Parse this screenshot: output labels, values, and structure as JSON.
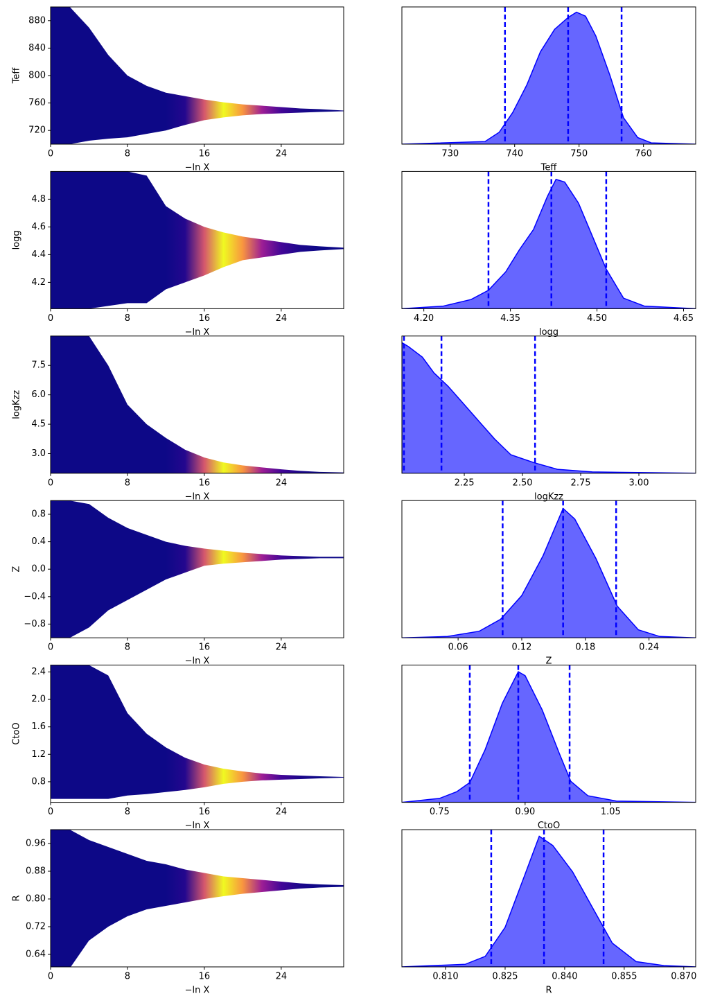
{
  "chart_data": [
    {
      "type": "band",
      "xlabel": "−ln X",
      "ylabel": "Teff",
      "colormap": "plasma",
      "x": [
        0,
        2,
        4,
        6,
        8,
        10,
        12,
        14,
        16,
        18,
        20,
        22,
        24,
        26,
        28,
        30.5
      ],
      "upper": [
        900,
        900,
        870,
        830,
        800,
        785,
        775,
        770,
        765,
        761,
        758,
        756,
        754,
        752,
        751,
        749
      ],
      "lower": [
        700,
        700,
        705,
        708,
        710,
        715,
        720,
        728,
        735,
        739,
        742,
        744,
        745,
        746,
        747,
        748
      ],
      "weights": [
        0,
        0,
        0,
        0,
        0,
        0,
        0,
        0.05,
        0.55,
        1,
        0.75,
        0.35,
        0.12,
        0.03,
        0,
        0
      ],
      "xlim": [
        0,
        30.5
      ],
      "xticks": [
        0,
        8,
        16,
        24
      ],
      "ylim": [
        700,
        900
      ],
      "yticks": [
        720,
        760,
        800,
        840,
        880
      ]
    },
    {
      "type": "area",
      "xlabel": "Teff",
      "color": "#0000ff",
      "quantile_color": "#0000ff",
      "x": [
        722.5,
        735.4,
        737.6,
        739.7,
        741.9,
        744.0,
        746.2,
        748.3,
        749.6,
        751.0,
        752.6,
        754.8,
        756.9,
        759.1,
        761.2,
        768.1
      ],
      "y": [
        0,
        0.02,
        0.09,
        0.24,
        0.45,
        0.7,
        0.87,
        0.96,
        1.0,
        0.97,
        0.82,
        0.52,
        0.2,
        0.05,
        0.01,
        0
      ],
      "quantiles": [
        738.5,
        748.3,
        756.6
      ],
      "xlim": [
        722.5,
        768.1
      ],
      "xticks": [
        730,
        740,
        750,
        760
      ],
      "ylim": [
        0,
        1.04
      ]
    },
    {
      "type": "band",
      "xlabel": "−ln X",
      "ylabel": "logg",
      "colormap": "plasma",
      "x": [
        0,
        2,
        4,
        6,
        8,
        10,
        12,
        14,
        16,
        18,
        20,
        22,
        24,
        26,
        28,
        30.5
      ],
      "upper": [
        5.0,
        5.0,
        5.0,
        5.0,
        5.0,
        4.97,
        4.75,
        4.66,
        4.6,
        4.56,
        4.53,
        4.51,
        4.49,
        4.47,
        4.46,
        4.45
      ],
      "lower": [
        4.01,
        4.01,
        4.01,
        4.03,
        4.05,
        4.05,
        4.15,
        4.2,
        4.25,
        4.31,
        4.36,
        4.38,
        4.4,
        4.42,
        4.43,
        4.44
      ],
      "weights": [
        0,
        0,
        0,
        0,
        0,
        0,
        0,
        0.05,
        0.55,
        1,
        0.75,
        0.35,
        0.12,
        0.03,
        0,
        0
      ],
      "xlim": [
        0,
        30.5
      ],
      "xticks": [
        0,
        8,
        16,
        24
      ],
      "ylim": [
        4.01,
        5.0
      ],
      "yticks": [
        4.2,
        4.4,
        4.6,
        4.8
      ]
    },
    {
      "type": "area",
      "xlabel": "logg",
      "color": "#0000ff",
      "quantile_color": "#0000ff",
      "x": [
        4.162,
        4.234,
        4.282,
        4.312,
        4.342,
        4.366,
        4.39,
        4.414,
        4.429,
        4.444,
        4.468,
        4.492,
        4.516,
        4.546,
        4.582,
        4.671
      ],
      "y": [
        0,
        0.02,
        0.07,
        0.14,
        0.28,
        0.45,
        0.6,
        0.85,
        0.98,
        0.96,
        0.8,
        0.55,
        0.3,
        0.08,
        0.02,
        0
      ],
      "quantiles": [
        4.312,
        4.421,
        4.516
      ],
      "xlim": [
        4.162,
        4.671
      ],
      "xticks": [
        {
          "value": 4.2,
          "label": "4.20"
        },
        4.35,
        {
          "value": 4.5,
          "label": "4.50"
        },
        4.65
      ],
      "ylim": [
        0,
        1.04
      ]
    },
    {
      "type": "band",
      "xlabel": "−ln X",
      "ylabel": "logKzz",
      "colormap": "plasma",
      "x": [
        0,
        2,
        4,
        6,
        8,
        10,
        12,
        14,
        16,
        18,
        20,
        22,
        24,
        26,
        28,
        30.5
      ],
      "upper": [
        9,
        9,
        9,
        7.5,
        5.5,
        4.5,
        3.8,
        3.2,
        2.8,
        2.55,
        2.4,
        2.3,
        2.2,
        2.12,
        2.07,
        2.04
      ],
      "lower": [
        2.0,
        2.0,
        2.0,
        2.0,
        2.0,
        2.0,
        2.0,
        2.0,
        2.0,
        2.0,
        2.0,
        2.0,
        2.0,
        2.0,
        2.0,
        2.0
      ],
      "weights": [
        0,
        0,
        0,
        0,
        0,
        0,
        0,
        0.05,
        0.55,
        1,
        0.75,
        0.35,
        0.12,
        0.03,
        0,
        0
      ],
      "xlim": [
        0,
        30.5
      ],
      "xticks": [
        0,
        8,
        16,
        24
      ],
      "ylim": [
        2.0,
        9.0
      ],
      "yticks": [
        {
          "value": 3,
          "label": "3.0"
        },
        4.5,
        {
          "value": 6,
          "label": "6.0"
        },
        7.5
      ]
    },
    {
      "type": "area",
      "xlabel": "logKzz",
      "color": "#0000ff",
      "quantile_color": "#0000ff",
      "x": [
        1.982,
        2.01,
        2.07,
        2.12,
        2.18,
        2.25,
        2.32,
        2.38,
        2.45,
        2.55,
        2.65,
        2.8,
        3.244
      ],
      "y": [
        0.99,
        0.96,
        0.88,
        0.76,
        0.66,
        0.52,
        0.38,
        0.26,
        0.14,
        0.08,
        0.03,
        0.01,
        0
      ],
      "quantiles": [
        1.991,
        2.152,
        2.554
      ],
      "xlim": [
        1.982,
        3.244
      ],
      "xticks": [
        2.25,
        {
          "value": 2.5,
          "label": "2.50"
        },
        2.75,
        {
          "value": 3,
          "label": "3.00"
        }
      ],
      "ylim": [
        0,
        1.04
      ]
    },
    {
      "type": "band",
      "xlabel": "−ln X",
      "ylabel": "Z",
      "colormap": "plasma",
      "x": [
        0,
        2,
        4,
        6,
        8,
        10,
        12,
        14,
        16,
        18,
        20,
        22,
        24,
        26,
        28,
        30.5
      ],
      "upper": [
        1,
        1,
        0.95,
        0.75,
        0.6,
        0.5,
        0.4,
        0.34,
        0.3,
        0.27,
        0.24,
        0.22,
        0.2,
        0.19,
        0.18,
        0.18
      ],
      "lower": [
        -1,
        -1,
        -0.85,
        -0.6,
        -0.45,
        -0.3,
        -0.15,
        -0.05,
        0.05,
        0.08,
        0.1,
        0.12,
        0.14,
        0.15,
        0.16,
        0.16
      ],
      "weights": [
        0,
        0,
        0,
        0,
        0,
        0,
        0,
        0.05,
        0.55,
        1,
        0.75,
        0.35,
        0.12,
        0.03,
        0,
        0
      ],
      "xlim": [
        0,
        30.5
      ],
      "xticks": [
        0,
        8,
        16,
        24
      ],
      "ylim": [
        -1,
        1
      ],
      "yticks": [
        {
          "value": -0.8,
          "label": "−0.8"
        },
        {
          "value": -0.4,
          "label": "−0.4"
        },
        {
          "value": 0,
          "label": "0.0"
        },
        0.4,
        0.8
      ]
    },
    {
      "type": "area",
      "xlabel": "Z",
      "color": "#0000ff",
      "quantile_color": "#0000ff",
      "x": [
        0.007,
        0.05,
        0.08,
        0.1,
        0.12,
        0.14,
        0.159,
        0.17,
        0.19,
        0.21,
        0.23,
        0.25,
        0.284
      ],
      "y": [
        0,
        0.01,
        0.05,
        0.14,
        0.32,
        0.62,
        0.98,
        0.9,
        0.6,
        0.24,
        0.06,
        0.01,
        0
      ],
      "quantiles": [
        0.102,
        0.159,
        0.209
      ],
      "xlim": [
        0.007,
        0.284
      ],
      "xticks": [
        0.06,
        0.12,
        0.18,
        0.24
      ],
      "ylim": [
        0,
        1.04
      ]
    },
    {
      "type": "band",
      "xlabel": "−ln X",
      "ylabel": "CtoO",
      "colormap": "plasma",
      "x": [
        0,
        2,
        4,
        6,
        8,
        10,
        12,
        14,
        16,
        18,
        20,
        22,
        24,
        26,
        28,
        30.5
      ],
      "upper": [
        2.5,
        2.5,
        2.5,
        2.35,
        1.8,
        1.5,
        1.3,
        1.15,
        1.05,
        0.99,
        0.95,
        0.92,
        0.9,
        0.89,
        0.88,
        0.87
      ],
      "lower": [
        0.55,
        0.55,
        0.55,
        0.55,
        0.6,
        0.62,
        0.65,
        0.68,
        0.72,
        0.77,
        0.8,
        0.82,
        0.83,
        0.84,
        0.85,
        0.86
      ],
      "weights": [
        0,
        0,
        0,
        0,
        0,
        0,
        0,
        0.05,
        0.55,
        1,
        0.75,
        0.35,
        0.12,
        0.03,
        0,
        0
      ],
      "xlim": [
        0,
        30.5
      ],
      "xticks": [
        0,
        8,
        16,
        24
      ],
      "ylim": [
        0.5,
        2.5
      ],
      "yticks": [
        0.8,
        1.2,
        1.6,
        {
          "value": 2,
          "label": "2.0"
        },
        2.4
      ]
    },
    {
      "type": "area",
      "xlabel": "CtoO",
      "color": "#0000ff",
      "quantile_color": "#0000ff",
      "x": [
        0.684,
        0.75,
        0.78,
        0.803,
        0.83,
        0.86,
        0.888,
        0.9,
        0.93,
        0.96,
        0.98,
        1.01,
        1.06,
        1.199
      ],
      "y": [
        0,
        0.03,
        0.08,
        0.15,
        0.4,
        0.75,
        0.99,
        0.96,
        0.7,
        0.37,
        0.16,
        0.05,
        0.01,
        0
      ],
      "quantiles": [
        0.803,
        0.888,
        0.978
      ],
      "xlim": [
        0.684,
        1.199
      ],
      "xticks": [
        0.75,
        {
          "value": 0.9,
          "label": "0.90"
        },
        1.05
      ],
      "ylim": [
        0,
        1.04
      ]
    },
    {
      "type": "band",
      "xlabel": "−ln X",
      "ylabel": "R",
      "colormap": "plasma",
      "x": [
        0,
        2,
        4,
        6,
        8,
        10,
        12,
        14,
        16,
        18,
        20,
        22,
        24,
        26,
        28,
        30.5
      ],
      "upper": [
        1.0,
        1.0,
        0.97,
        0.95,
        0.93,
        0.91,
        0.9,
        0.885,
        0.875,
        0.865,
        0.86,
        0.855,
        0.85,
        0.845,
        0.842,
        0.84
      ],
      "lower": [
        0.6,
        0.6,
        0.68,
        0.72,
        0.75,
        0.77,
        0.78,
        0.79,
        0.8,
        0.808,
        0.815,
        0.82,
        0.825,
        0.83,
        0.833,
        0.835
      ],
      "weights": [
        0,
        0,
        0,
        0,
        0,
        0,
        0,
        0.05,
        0.55,
        1,
        0.75,
        0.35,
        0.12,
        0.03,
        0,
        0
      ],
      "xlim": [
        0,
        30.5
      ],
      "xticks": [
        0,
        8,
        16,
        24
      ],
      "ylim": [
        0.604,
        1.0
      ],
      "yticks": [
        0.64,
        0.72,
        {
          "value": 0.8,
          "label": "0.80"
        },
        0.88,
        0.96
      ]
    },
    {
      "type": "area",
      "xlabel": "R",
      "color": "#0000ff",
      "quantile_color": "#0000ff",
      "x": [
        0.799,
        0.815,
        0.82,
        0.825,
        0.83,
        0.8336,
        0.837,
        0.842,
        0.847,
        0.852,
        0.858,
        0.865,
        0.873
      ],
      "y": [
        0,
        0.02,
        0.08,
        0.3,
        0.7,
        0.99,
        0.92,
        0.72,
        0.45,
        0.18,
        0.04,
        0.01,
        0
      ],
      "quantiles": [
        0.8215,
        0.8348,
        0.8498
      ],
      "xlim": [
        0.799,
        0.873
      ],
      "xticks": [
        {
          "value": 0.81,
          "label": "0.810"
        },
        0.825,
        {
          "value": 0.84,
          "label": "0.840"
        },
        0.855,
        {
          "value": 0.87,
          "label": "0.870"
        }
      ],
      "ylim": [
        0,
        1.04
      ]
    }
  ]
}
